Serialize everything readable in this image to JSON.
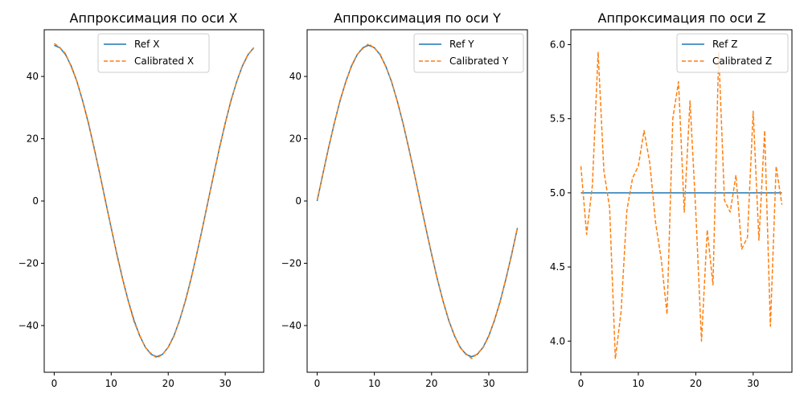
{
  "chart_data": [
    {
      "type": "line",
      "title": "Аппроксимация по оси X",
      "xlabel": "",
      "ylabel": "",
      "xlim": [
        -1.75,
        36.75
      ],
      "ylim": [
        -55,
        55
      ],
      "xticks": [
        0,
        10,
        20,
        30
      ],
      "yticks": [
        -40,
        -20,
        0,
        20,
        40
      ],
      "grid": false,
      "legend_position": "top-center",
      "x": [
        0,
        1,
        2,
        3,
        4,
        5,
        6,
        7,
        8,
        9,
        10,
        11,
        12,
        13,
        14,
        15,
        16,
        17,
        18,
        19,
        20,
        21,
        22,
        23,
        24,
        25,
        26,
        27,
        28,
        29,
        30,
        31,
        32,
        33,
        34,
        35
      ],
      "series": [
        {
          "name": "Ref X",
          "color": "#1f77b4",
          "dash": "solid",
          "values": [
            50,
            49.2,
            46.98,
            43.3,
            38.3,
            32.14,
            25,
            17.1,
            8.68,
            0,
            -8.68,
            -17.1,
            -25,
            -32.14,
            -38.3,
            -43.3,
            -46.98,
            -49.24,
            -50,
            -49.24,
            -46.98,
            -43.3,
            -38.3,
            -32.14,
            -25,
            -17.1,
            -8.68,
            0,
            8.68,
            17.1,
            25,
            32.14,
            38.3,
            43.3,
            46.98,
            49.24
          ]
        },
        {
          "name": "Calibrated X",
          "color": "#ff7f0e",
          "dash": "dashed",
          "values": [
            50.6,
            49.3,
            47.3,
            43.0,
            38.4,
            31.9,
            25.3,
            16.8,
            8.9,
            -0.3,
            -8.4,
            -17.4,
            -25.2,
            -32.3,
            -38.8,
            -43.1,
            -47.1,
            -49.0,
            -50.4,
            -49.3,
            -47.0,
            -43.5,
            -38.1,
            -32.3,
            -25.2,
            -17.0,
            -8.8,
            0.2,
            8.5,
            17.3,
            24.8,
            32.4,
            38.1,
            43.5,
            47.1,
            49.1
          ]
        }
      ]
    },
    {
      "type": "line",
      "title": "Аппроксимация по оси Y",
      "xlabel": "",
      "ylabel": "",
      "xlim": [
        -1.75,
        36.75
      ],
      "ylim": [
        -55,
        55
      ],
      "xticks": [
        0,
        10,
        20,
        30
      ],
      "yticks": [
        -40,
        -20,
        0,
        20,
        40
      ],
      "grid": false,
      "legend_position": "top-right",
      "x": [
        0,
        1,
        2,
        3,
        4,
        5,
        6,
        7,
        8,
        9,
        10,
        11,
        12,
        13,
        14,
        15,
        16,
        17,
        18,
        19,
        20,
        21,
        22,
        23,
        24,
        25,
        26,
        27,
        28,
        29,
        30,
        31,
        32,
        33,
        34,
        35
      ],
      "series": [
        {
          "name": "Ref Y",
          "color": "#1f77b4",
          "dash": "solid",
          "values": [
            0,
            8.68,
            17.1,
            25,
            32.14,
            38.3,
            43.3,
            46.98,
            49.24,
            50,
            49.24,
            46.98,
            43.3,
            38.3,
            32.14,
            25,
            17.1,
            8.68,
            0,
            -8.68,
            -17.1,
            -25,
            -32.14,
            -38.3,
            -43.3,
            -46.98,
            -49.24,
            -50,
            -49.24,
            -46.98,
            -43.3,
            -38.3,
            -32.14,
            -25,
            -17.1,
            -8.68
          ]
        },
        {
          "name": "Calibrated Y",
          "color": "#ff7f0e",
          "dash": "dashed",
          "values": [
            0.3,
            8.5,
            17.3,
            24.8,
            32.4,
            38.1,
            43.5,
            47.1,
            49.0,
            50.5,
            49.1,
            47.2,
            43.1,
            38.5,
            32.0,
            25.2,
            16.9,
            8.9,
            -0.2,
            -8.9,
            -16.9,
            -25.2,
            -32.0,
            -38.5,
            -43.1,
            -47.2,
            -49.0,
            -50.6,
            -49.0,
            -47.1,
            -43.5,
            -38.1,
            -32.4,
            -24.8,
            -17.3,
            -8.5
          ]
        }
      ]
    },
    {
      "type": "line",
      "title": "Аппроксимация по оси Z",
      "xlabel": "",
      "ylabel": "",
      "xlim": [
        -1.75,
        36.75
      ],
      "ylim": [
        3.79,
        6.1
      ],
      "xticks": [
        0,
        10,
        20,
        30
      ],
      "yticks": [
        4.0,
        4.5,
        5.0,
        5.5,
        6.0
      ],
      "grid": false,
      "legend_position": "top-right",
      "x": [
        0,
        1,
        2,
        3,
        4,
        5,
        6,
        7,
        8,
        9,
        10,
        11,
        12,
        13,
        14,
        15,
        16,
        17,
        18,
        19,
        20,
        21,
        22,
        23,
        24,
        25,
        26,
        27,
        28,
        29,
        30,
        31,
        32,
        33,
        34,
        35
      ],
      "series": [
        {
          "name": "Ref Z",
          "color": "#1f77b4",
          "dash": "solid",
          "values": [
            5,
            5,
            5,
            5,
            5,
            5,
            5,
            5,
            5,
            5,
            5,
            5,
            5,
            5,
            5,
            5,
            5,
            5,
            5,
            5,
            5,
            5,
            5,
            5,
            5,
            5,
            5,
            5,
            5,
            5,
            5,
            5,
            5,
            5,
            5,
            5
          ]
        },
        {
          "name": "Calibrated Z",
          "color": "#ff7f0e",
          "dash": "dashed",
          "values": [
            5.18,
            4.72,
            5.05,
            5.95,
            5.15,
            4.9,
            3.88,
            4.2,
            4.88,
            5.1,
            5.18,
            5.42,
            5.2,
            4.8,
            4.55,
            4.18,
            5.5,
            5.75,
            4.87,
            5.62,
            4.88,
            4.0,
            4.75,
            4.38,
            5.95,
            4.95,
            4.87,
            5.12,
            4.62,
            4.7,
            5.55,
            4.68,
            5.42,
            4.1,
            5.18,
            4.92
          ]
        }
      ]
    }
  ]
}
